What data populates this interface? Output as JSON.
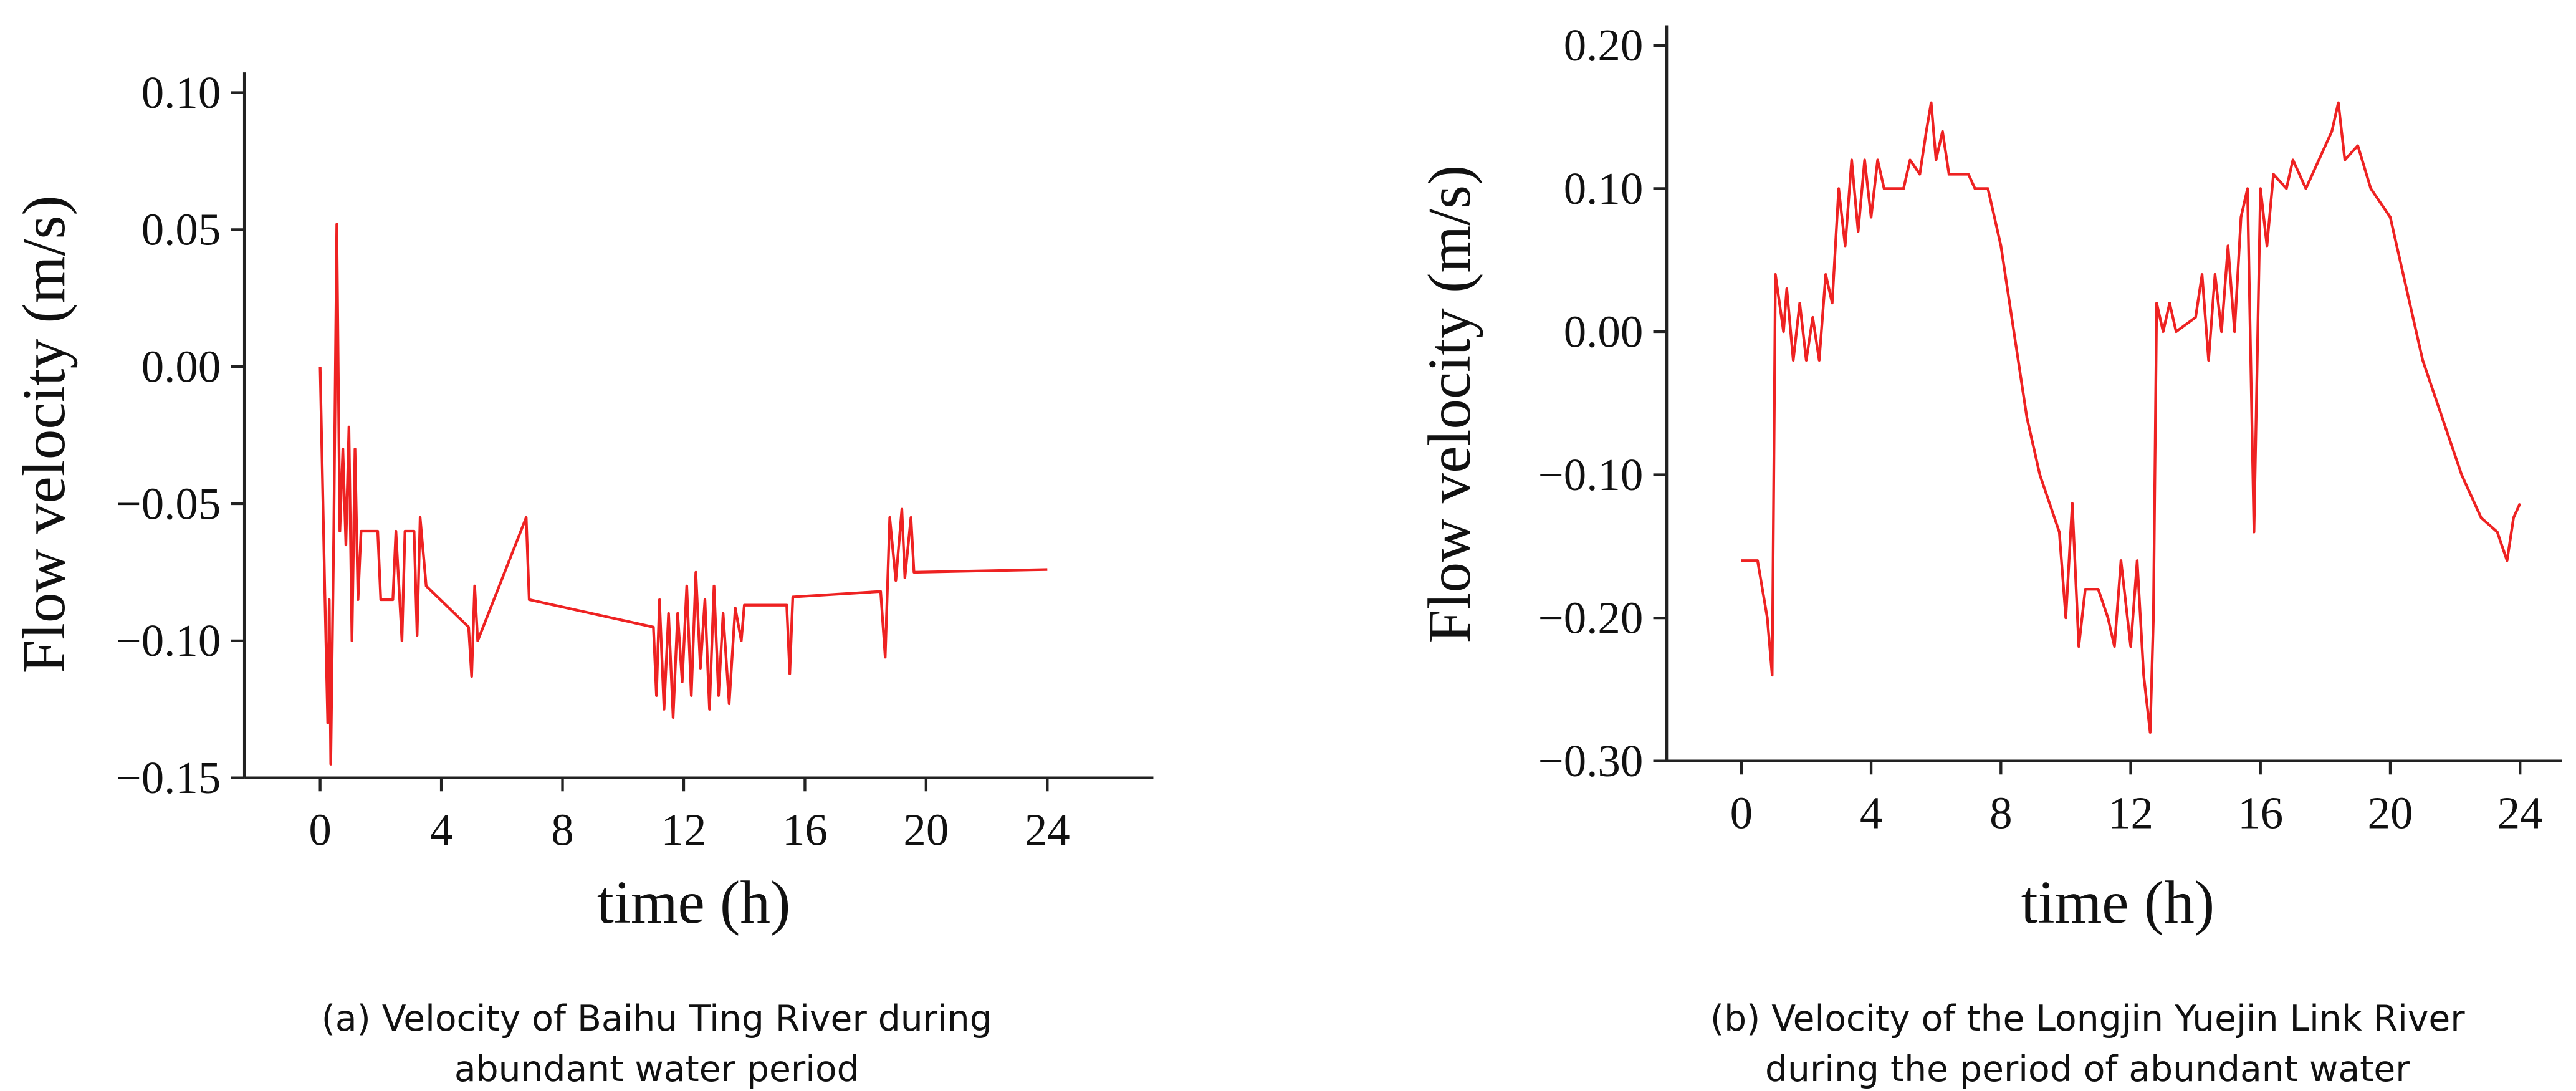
{
  "chart_data": [
    {
      "type": "line",
      "xlabel": "time (h)",
      "ylabel": "Flow velocity (m/s)",
      "caption": [
        "(a) Velocity of Baihu Ting River during",
        "abundant water period"
      ],
      "color": "#ee2222",
      "xlim": [
        -2.5,
        27.5
      ],
      "xticks": [
        0,
        4,
        8,
        12,
        16,
        20,
        24
      ],
      "ylim": [
        -0.15,
        0.1
      ],
      "yticks": [
        {
          "value": 0.1,
          "label": "0.10"
        },
        {
          "value": 0.05,
          "label": "0.05"
        },
        {
          "value": 0,
          "label": "0.00"
        },
        {
          "value": -0.05,
          "label": "−0.05"
        },
        {
          "value": -0.1,
          "label": "−0.10"
        },
        {
          "value": -0.15,
          "label": "−0.15"
        }
      ],
      "x": [
        0,
        0.15,
        0.25,
        0.3,
        0.35,
        0.45,
        0.55,
        0.65,
        0.75,
        0.85,
        0.95,
        1.05,
        1.15,
        1.25,
        1.35,
        1.9,
        2.0,
        2.4,
        2.5,
        2.7,
        2.8,
        3.1,
        3.2,
        3.3,
        3.5,
        4.9,
        5.0,
        5.1,
        5.2,
        6.8,
        6.9,
        11.0,
        11.1,
        11.2,
        11.35,
        11.5,
        11.65,
        11.8,
        11.95,
        12.1,
        12.25,
        12.4,
        12.55,
        12.7,
        12.85,
        13.0,
        13.15,
        13.3,
        13.5,
        13.7,
        13.9,
        14.0,
        15.4,
        15.5,
        15.6,
        18.5,
        18.65,
        18.8,
        19.0,
        19.2,
        19.3,
        19.5,
        19.6,
        24
      ],
      "values": [
        0,
        -0.08,
        -0.13,
        -0.085,
        -0.145,
        -0.06,
        0.052,
        -0.06,
        -0.03,
        -0.065,
        -0.022,
        -0.1,
        -0.03,
        -0.085,
        -0.06,
        -0.06,
        -0.085,
        -0.085,
        -0.06,
        -0.1,
        -0.06,
        -0.06,
        -0.098,
        -0.055,
        -0.08,
        -0.095,
        -0.113,
        -0.08,
        -0.1,
        -0.055,
        -0.085,
        -0.095,
        -0.12,
        -0.085,
        -0.125,
        -0.09,
        -0.128,
        -0.09,
        -0.115,
        -0.08,
        -0.12,
        -0.075,
        -0.11,
        -0.085,
        -0.125,
        -0.08,
        -0.12,
        -0.09,
        -0.123,
        -0.088,
        -0.1,
        -0.087,
        -0.087,
        -0.112,
        -0.084,
        -0.082,
        -0.106,
        -0.055,
        -0.078,
        -0.052,
        -0.077,
        -0.055,
        -0.075,
        -0.074
      ]
    },
    {
      "type": "line",
      "xlabel": "time (h)",
      "ylabel": "Flow velocity (m/s)",
      "caption": [
        "(b)  Velocity of the Longjin Yuejin Link River",
        "during the period of abundant water"
      ],
      "color": "#ee2222",
      "xlim": [
        -2.3,
        25.3
      ],
      "xticks": [
        0,
        4,
        8,
        12,
        16,
        20,
        24
      ],
      "ylim": [
        -0.3,
        0.2
      ],
      "yticks": [
        {
          "value": 0.2,
          "label": "0.20"
        },
        {
          "value": 0.1,
          "label": "0.10"
        },
        {
          "value": 0,
          "label": "0.00"
        },
        {
          "value": -0.1,
          "label": "−0.10"
        },
        {
          "value": -0.2,
          "label": "−0.20"
        },
        {
          "value": -0.3,
          "label": "−0.30"
        }
      ],
      "x": [
        0,
        0.5,
        0.8,
        0.95,
        1.05,
        1.3,
        1.4,
        1.6,
        1.8,
        2.0,
        2.2,
        2.4,
        2.6,
        2.8,
        3.0,
        3.2,
        3.4,
        3.6,
        3.8,
        4.0,
        4.2,
        4.4,
        5.0,
        5.2,
        5.5,
        5.7,
        5.85,
        6.0,
        6.2,
        6.4,
        7.0,
        7.2,
        7.6,
        8.0,
        8.4,
        8.8,
        9.2,
        9.5,
        9.8,
        10.0,
        10.2,
        10.4,
        10.6,
        11.0,
        11.3,
        11.5,
        11.7,
        12.0,
        12.2,
        12.4,
        12.6,
        12.7,
        12.8,
        13.0,
        13.2,
        13.4,
        14.0,
        14.2,
        14.4,
        14.6,
        14.8,
        15.0,
        15.2,
        15.4,
        15.6,
        15.8,
        16.0,
        16.2,
        16.4,
        16.8,
        17.0,
        17.4,
        17.8,
        18.2,
        18.4,
        18.6,
        19.0,
        19.4,
        20.0,
        20.6,
        21.0,
        21.6,
        22.2,
        22.8,
        23.3,
        23.6,
        23.8,
        24
      ],
      "values": [
        -0.16,
        -0.16,
        -0.2,
        -0.24,
        0.04,
        0.0,
        0.03,
        -0.02,
        0.02,
        -0.02,
        0.01,
        -0.02,
        0.04,
        0.02,
        0.1,
        0.06,
        0.12,
        0.07,
        0.12,
        0.08,
        0.12,
        0.1,
        0.1,
        0.12,
        0.11,
        0.14,
        0.16,
        0.12,
        0.14,
        0.11,
        0.11,
        0.1,
        0.1,
        0.06,
        0.0,
        -0.06,
        -0.1,
        -0.12,
        -0.14,
        -0.2,
        -0.12,
        -0.22,
        -0.18,
        -0.18,
        -0.2,
        -0.22,
        -0.16,
        -0.22,
        -0.16,
        -0.24,
        -0.28,
        -0.2,
        0.02,
        0.0,
        0.02,
        0.0,
        0.01,
        0.04,
        -0.02,
        0.04,
        0.0,
        0.06,
        0.0,
        0.08,
        0.1,
        -0.14,
        0.1,
        0.06,
        0.11,
        0.1,
        0.12,
        0.1,
        0.12,
        0.14,
        0.16,
        0.12,
        0.13,
        0.1,
        0.08,
        0.02,
        -0.02,
        -0.06,
        -0.1,
        -0.13,
        -0.14,
        -0.16,
        -0.13,
        -0.12
      ]
    }
  ]
}
